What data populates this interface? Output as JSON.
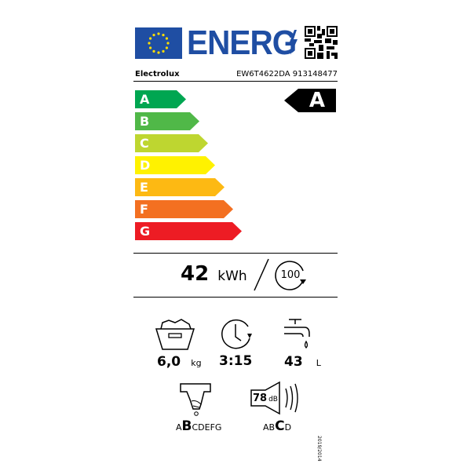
{
  "header": {
    "logo_text": "ENERG",
    "brand": "Electrolux",
    "model": "EW6T4622DA 913148477"
  },
  "scale": {
    "classes": [
      {
        "letter": "A",
        "color": "#00a651"
      },
      {
        "letter": "B",
        "color": "#50b848"
      },
      {
        "letter": "C",
        "color": "#bed630"
      },
      {
        "letter": "D",
        "color": "#fff200"
      },
      {
        "letter": "E",
        "color": "#fdb913"
      },
      {
        "letter": "F",
        "color": "#f37021"
      },
      {
        "letter": "G",
        "color": "#ed1c24"
      }
    ],
    "rated_class": "A"
  },
  "energy": {
    "value": "42",
    "unit": "kWh",
    "cycles": "100"
  },
  "specs": {
    "capacity": {
      "value": "6,0",
      "unit": "kg"
    },
    "duration": {
      "value": "3:15"
    },
    "water": {
      "value": "43",
      "unit": "L"
    }
  },
  "spin": {
    "pre": "A",
    "class": "B",
    "post": "CDEFG"
  },
  "noise": {
    "value": "78",
    "unit": "dB",
    "pre": "AB",
    "class": "C",
    "post": "D"
  },
  "regulation": "2019/2014"
}
